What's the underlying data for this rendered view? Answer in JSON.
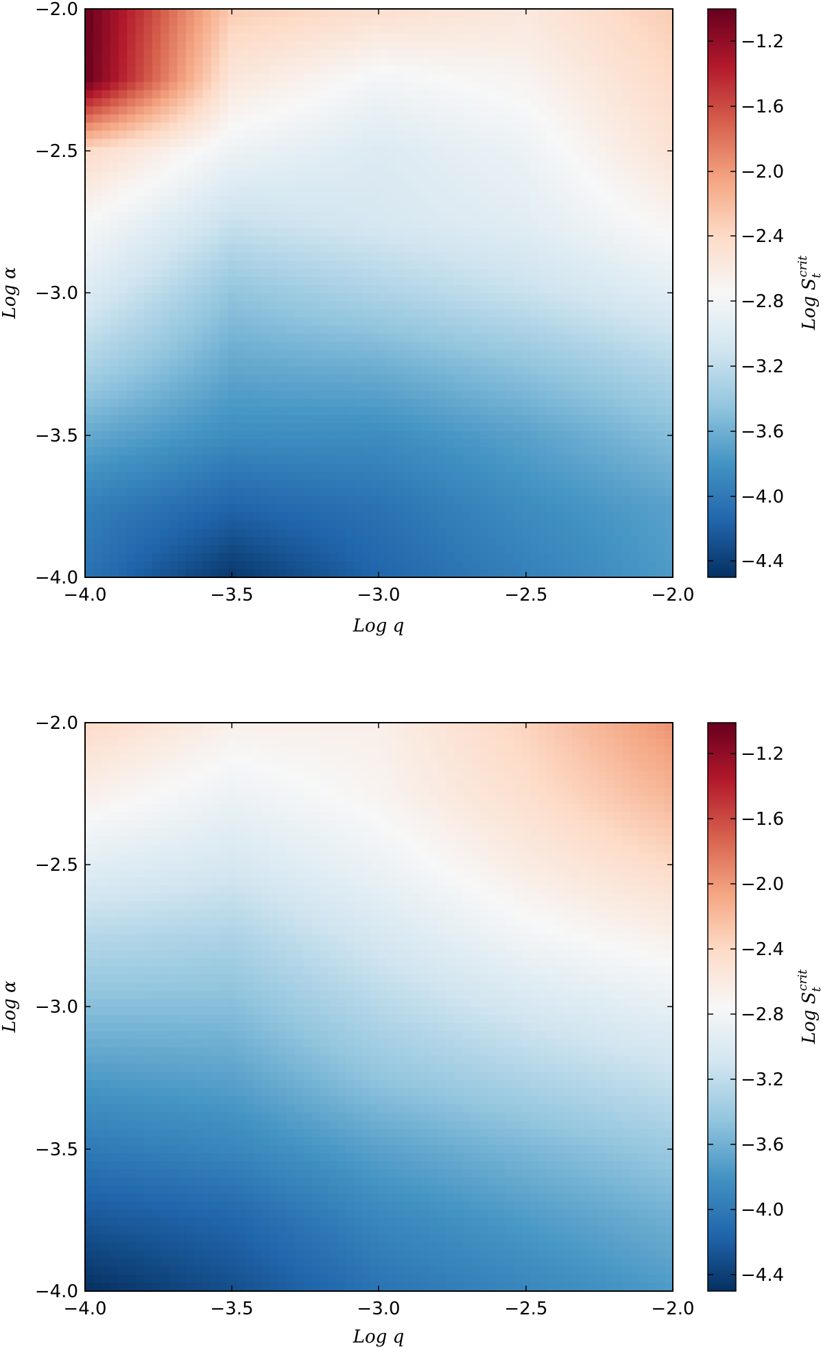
{
  "colorscale": {
    "name": "RdBu_r",
    "stops": [
      "#053061",
      "#2166ac",
      "#4393c3",
      "#92c5de",
      "#d1e5f0",
      "#f7f7f7",
      "#fddbc7",
      "#f4a582",
      "#d6604d",
      "#b2182b",
      "#67001f"
    ]
  },
  "chart_data": [
    {
      "type": "heatmap",
      "xlabel": "Log q",
      "ylabel": "Log α",
      "colorbar_label": "Log S_t^crit",
      "xlim": [
        -4.0,
        -2.0
      ],
      "ylim": [
        -4.0,
        -2.0
      ],
      "x_ticks": [
        "−4.0",
        "−3.5",
        "−3.0",
        "−2.5",
        "−2.0"
      ],
      "y_ticks": [
        "−2.0",
        "−2.5",
        "−3.0",
        "−3.5",
        "−4.0"
      ],
      "clim": [
        -4.5,
        -1.0
      ],
      "colorbar_ticks": [
        "−1.2",
        "−1.6",
        "−2.0",
        "−2.4",
        "−2.8",
        "−3.2",
        "−3.6",
        "−4.0",
        "−4.4"
      ],
      "grid": false,
      "x": [
        -4.0,
        -3.5,
        -3.0,
        -2.5,
        -2.0
      ],
      "y": [
        -2.0,
        -2.25,
        -2.5,
        -2.75,
        -3.0,
        -3.25,
        -3.5,
        -3.75,
        -4.0
      ],
      "z": [
        [
          -1.0,
          -2.3,
          -2.45,
          -2.55,
          -2.3
        ],
        [
          -1.0,
          -2.55,
          -2.8,
          -2.7,
          -2.4
        ],
        [
          -2.4,
          -2.85,
          -3.0,
          -2.85,
          -2.5
        ],
        [
          -2.75,
          -3.15,
          -3.05,
          -2.95,
          -2.7
        ],
        [
          -3.0,
          -3.45,
          -3.3,
          -3.15,
          -2.95
        ],
        [
          -3.3,
          -3.65,
          -3.6,
          -3.45,
          -3.25
        ],
        [
          -3.65,
          -3.85,
          -3.85,
          -3.7,
          -3.5
        ],
        [
          -3.95,
          -4.15,
          -4.05,
          -3.85,
          -3.7
        ],
        [
          -4.05,
          -4.45,
          -4.15,
          -3.95,
          -3.75
        ]
      ]
    },
    {
      "type": "heatmap",
      "xlabel": "Log q",
      "ylabel": "Log α",
      "colorbar_label": "Log S_t^crit",
      "xlim": [
        -4.0,
        -2.0
      ],
      "ylim": [
        -4.0,
        -2.0
      ],
      "x_ticks": [
        "−4.0",
        "−3.5",
        "−3.0",
        "−2.5",
        "−2.0"
      ],
      "y_ticks": [
        "−2.0",
        "−2.5",
        "−3.0",
        "−3.5",
        "−4.0"
      ],
      "clim": [
        -4.5,
        -1.0
      ],
      "colorbar_ticks": [
        "−1.2",
        "−1.6",
        "−2.0",
        "−2.4",
        "−2.8",
        "−3.2",
        "−3.6",
        "−4.0",
        "−4.4"
      ],
      "grid": false,
      "x": [
        -4.0,
        -3.5,
        -3.0,
        -2.5,
        -2.0
      ],
      "y": [
        -2.0,
        -2.25,
        -2.5,
        -2.75,
        -3.0,
        -3.25,
        -3.5,
        -3.75,
        -4.0
      ],
      "z": [
        [
          -2.4,
          -2.65,
          -2.65,
          -2.35,
          -1.95
        ],
        [
          -2.65,
          -2.85,
          -2.7,
          -2.45,
          -2.15
        ],
        [
          -2.95,
          -3.05,
          -2.85,
          -2.6,
          -2.4
        ],
        [
          -3.25,
          -3.3,
          -3.05,
          -2.8,
          -2.65
        ],
        [
          -3.5,
          -3.5,
          -3.25,
          -3.05,
          -2.9
        ],
        [
          -3.75,
          -3.7,
          -3.45,
          -3.3,
          -3.15
        ],
        [
          -4.0,
          -3.9,
          -3.7,
          -3.55,
          -3.4
        ],
        [
          -4.25,
          -4.15,
          -3.9,
          -3.75,
          -3.6
        ],
        [
          -4.5,
          -4.3,
          -4.05,
          -3.9,
          -3.75
        ]
      ]
    }
  ]
}
